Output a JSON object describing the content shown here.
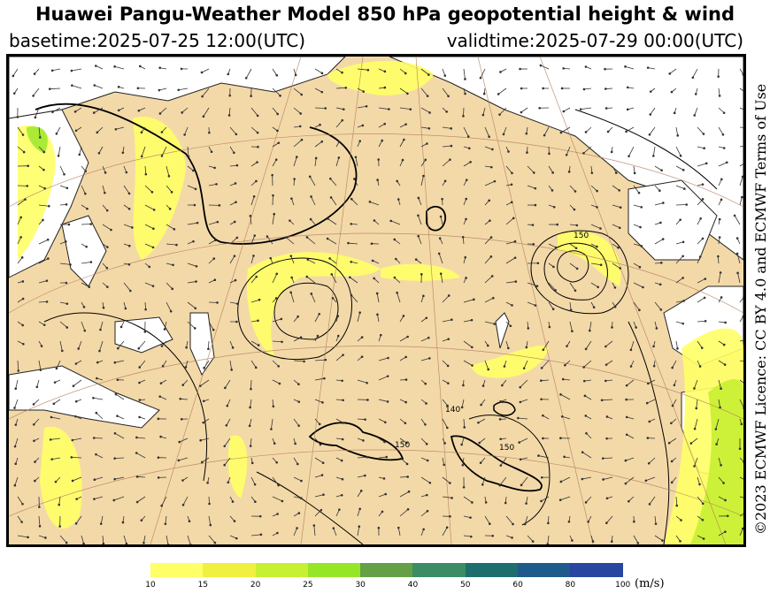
{
  "header": {
    "title": "Huawei Pangu-Weather Model 850 hPa geopotential height & wind",
    "basetime": "basetime:2025-07-25 12:00(UTC)",
    "validtime": "validtime:2025-07-29 00:00(UTC)"
  },
  "licence": "©2023 ECMWF Licence: CC BY 4.0 and ECMWF Terms of Use",
  "map": {
    "contour_labels": [
      "150",
      "140",
      "150",
      "150"
    ],
    "land_color": "#f3d9a8",
    "sea_color": "#ffffff"
  },
  "colorbar": {
    "unit": "(m/s)",
    "levels": [
      "10",
      "15",
      "20",
      "25",
      "30",
      "40",
      "50",
      "60",
      "80",
      "100"
    ],
    "colors": [
      "#ffff66",
      "#f0f040",
      "#c8f032",
      "#96e628",
      "#64a046",
      "#3c8c64",
      "#1e6e6e",
      "#1e5a8c",
      "#2846a0",
      "#2832b4"
    ]
  }
}
